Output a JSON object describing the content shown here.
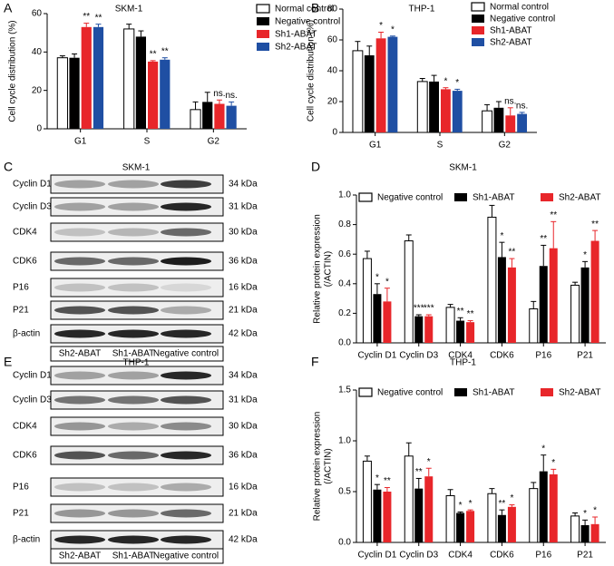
{
  "chart_data": [
    {
      "type": "bar",
      "panel": "A",
      "title": "SKM-1",
      "ylabel": [
        "Cell cycle distribution (%)"
      ],
      "categories": [
        "G1",
        "S",
        "G2"
      ],
      "ylim": [
        0,
        60
      ],
      "yticks": [
        0,
        20,
        40,
        60
      ],
      "series": [
        {
          "name": "Normal control",
          "color": "#ffffff",
          "values": [
            37,
            52,
            10
          ],
          "errors": [
            1,
            2.5,
            4
          ]
        },
        {
          "name": "Negative control",
          "color": "#000000",
          "values": [
            37,
            48,
            14
          ],
          "errors": [
            2,
            3,
            5
          ]
        },
        {
          "name": "Sh1-ABAT",
          "color": "#e8262a",
          "values": [
            53,
            35,
            13
          ],
          "errors": [
            2,
            0.5,
            2
          ],
          "annotations": [
            "**",
            "**",
            "ns."
          ]
        },
        {
          "name": "Sh2-ABAT",
          "color": "#1f4fa3",
          "values": [
            53,
            36,
            12
          ],
          "errors": [
            1.5,
            1,
            2
          ],
          "annotations": [
            "**",
            "**",
            "ns."
          ]
        }
      ]
    },
    {
      "type": "bar",
      "panel": "B",
      "title": "THP-1",
      "ylabel": [
        "Cell cycle distribution (%)"
      ],
      "categories": [
        "G1",
        "S",
        "G2"
      ],
      "ylim": [
        0,
        80
      ],
      "yticks": [
        0,
        20,
        40,
        60,
        80
      ],
      "series": [
        {
          "name": "Normal control",
          "color": "#ffffff",
          "values": [
            53,
            33,
            14
          ],
          "errors": [
            6,
            2,
            4
          ]
        },
        {
          "name": "Negative control",
          "color": "#000000",
          "values": [
            50,
            33,
            16
          ],
          "errors": [
            6,
            4,
            4
          ]
        },
        {
          "name": "Sh1-ABAT",
          "color": "#e8262a",
          "values": [
            61,
            28,
            11
          ],
          "errors": [
            4,
            1,
            5
          ],
          "annotations": [
            "*",
            "*",
            "ns."
          ]
        },
        {
          "name": "Sh2-ABAT",
          "color": "#1f4fa3",
          "values": [
            62,
            27,
            12
          ],
          "errors": [
            0.5,
            1,
            1
          ],
          "annotations": [
            "*",
            "*",
            "ns."
          ]
        }
      ]
    },
    {
      "type": "bar",
      "panel": "D",
      "title": "SKM-1",
      "ylabel": [
        "Relative protein expression",
        "(/ACTIN)"
      ],
      "categories": [
        "Cyclin D1",
        "Cyclin D3",
        "CDK4",
        "CDK6",
        "P16",
        "P21"
      ],
      "ylim": [
        0,
        1
      ],
      "yticks": [
        {
          "value": 0,
          "label": "0.0"
        },
        0.2,
        0.4,
        0.6,
        0.8,
        {
          "value": 1,
          "label": "1.0"
        }
      ],
      "series": [
        {
          "name": "Negative control",
          "color": "#ffffff",
          "values": [
            0.57,
            0.69,
            0.24,
            0.85,
            0.23,
            0.39
          ],
          "errors": [
            0.05,
            0.04,
            0.02,
            0.08,
            0.05,
            0.02
          ]
        },
        {
          "name": "Sh1-ABAT",
          "color": "#000000",
          "values": [
            0.33,
            0.18,
            0.15,
            0.58,
            0.52,
            0.51
          ],
          "errors": [
            0.07,
            0.01,
            0.02,
            0.1,
            0.14,
            0.04
          ],
          "annotations": [
            "*",
            "***",
            "**",
            "*",
            "**",
            "*"
          ]
        },
        {
          "name": "Sh2-ABAT",
          "color": "#e8262a",
          "values": [
            0.28,
            0.18,
            0.14,
            0.51,
            0.64,
            0.69
          ],
          "errors": [
            0.09,
            0.01,
            0.01,
            0.06,
            0.18,
            0.07
          ],
          "annotations": [
            "*",
            "***",
            "**",
            "**",
            "**",
            "**"
          ]
        }
      ]
    },
    {
      "type": "bar",
      "panel": "F",
      "title": "THP-1",
      "ylabel": [
        "Relative protein expression",
        "(/ACTIN)"
      ],
      "categories": [
        "Cyclin D1",
        "Cyclin D3",
        "CDK4",
        "CDK6",
        "P16",
        "P21"
      ],
      "ylim": [
        0,
        1.5
      ],
      "yticks": [
        {
          "value": 0,
          "label": "0.0"
        },
        0.5,
        {
          "value": 1,
          "label": "1.0"
        },
        1.5
      ],
      "series": [
        {
          "name": "Negative control",
          "color": "#ffffff",
          "values": [
            0.8,
            0.85,
            0.46,
            0.48,
            0.53,
            0.26
          ],
          "errors": [
            0.05,
            0.13,
            0.06,
            0.05,
            0.06,
            0.03
          ]
        },
        {
          "name": "Sh1-ABAT",
          "color": "#000000",
          "values": [
            0.52,
            0.53,
            0.29,
            0.27,
            0.7,
            0.17
          ],
          "errors": [
            0.05,
            0.1,
            0.01,
            0.05,
            0.16,
            0.05
          ],
          "annotations": [
            "*",
            "**",
            "*",
            "**",
            "*",
            "*"
          ]
        },
        {
          "name": "Sh2-ABAT",
          "color": "#e8262a",
          "values": [
            0.5,
            0.65,
            0.31,
            0.35,
            0.67,
            0.18
          ],
          "errors": [
            0.04,
            0.08,
            0.01,
            0.02,
            0.05,
            0.07
          ],
          "annotations": [
            "**",
            "*",
            "*",
            "*",
            "*",
            "*"
          ]
        }
      ]
    }
  ],
  "blots": [
    {
      "panel": "C",
      "title": "SKM-1",
      "rows": [
        {
          "label": "Cyclin D1",
          "size": "34 kDa"
        },
        {
          "label": "Cyclin D3",
          "size": "31 kDa"
        },
        {
          "label": "CDK4",
          "size": "30 kDa"
        },
        {
          "label": "CDK6",
          "size": "36 kDa"
        },
        {
          "label": "P16",
          "size": "16 kDa"
        },
        {
          "label": "P21",
          "size": "21 kDa"
        },
        {
          "label": "β-actin",
          "size": "42 kDa"
        }
      ],
      "lanes": [
        "Sh2-ABAT",
        "Sh1-ABAT",
        "Negative control"
      ]
    },
    {
      "panel": "E",
      "title": "THP-1",
      "rows": [
        {
          "label": "Cyclin D1",
          "size": "34 kDa"
        },
        {
          "label": "Cyclin D3",
          "size": "31 kDa"
        },
        {
          "label": "CDK4",
          "size": "30 kDa"
        },
        {
          "label": "CDK6",
          "size": "36 kDa"
        },
        {
          "label": "P16",
          "size": "16 kDa"
        },
        {
          "label": "P21",
          "size": "21 kDa"
        },
        {
          "label": "β-actin",
          "size": "42 kDa"
        }
      ],
      "lanes": [
        "Sh2-ABAT",
        "Sh1-ABAT",
        "Negative control"
      ]
    }
  ]
}
